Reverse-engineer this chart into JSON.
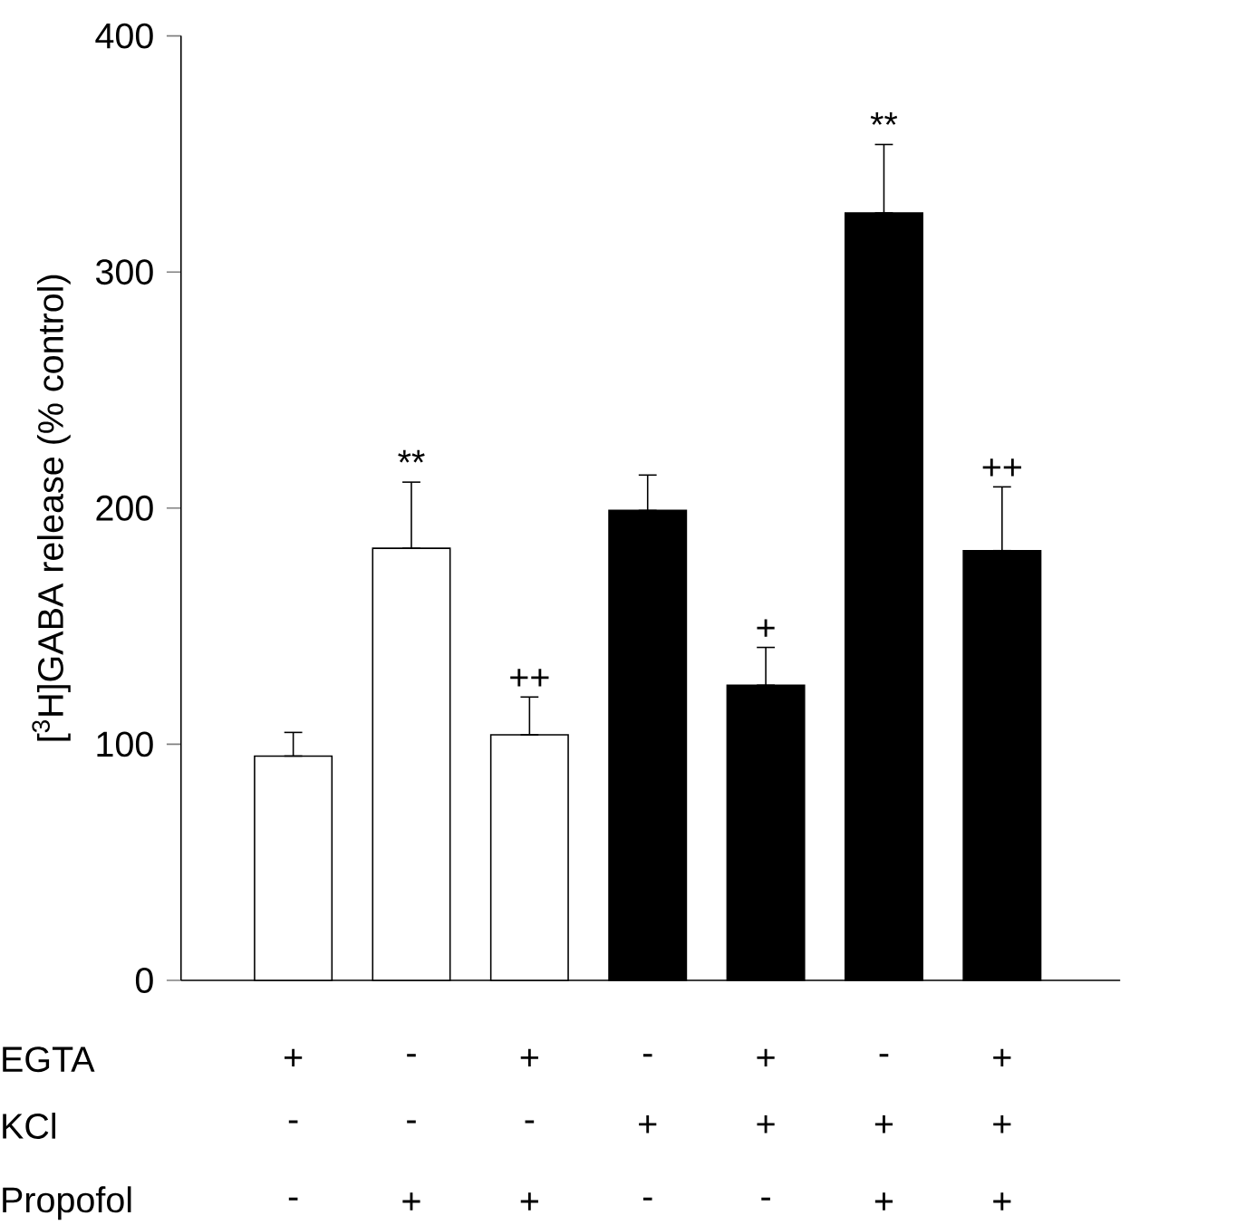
{
  "chart_data": {
    "type": "bar",
    "ylabel": "[$^{3}$H]GABA release (% control)",
    "categories": [
      null,
      null,
      null,
      null,
      null,
      null,
      null
    ],
    "values": [
      95,
      183,
      104,
      199,
      125,
      325,
      182
    ],
    "colors": [
      "#ffffff",
      "#ffffff",
      "#ffffff",
      "#000000",
      "#000000",
      "#000000",
      "#000000"
    ],
    "errors": [
      [
        95,
        105
      ],
      [
        183,
        211
      ],
      [
        104,
        120
      ],
      [
        199,
        214
      ],
      [
        125,
        141
      ],
      [
        325,
        354
      ],
      [
        182,
        209
      ]
    ],
    "value_labels": [
      null,
      "**",
      "++",
      null,
      "+",
      "**",
      "++"
    ],
    "ylim": [
      0,
      400
    ],
    "yticks": [
      0,
      100,
      200,
      300,
      400
    ],
    "annotations": [
      "EGTA",
      "KCl",
      "Propofol",
      "+",
      "-",
      "+",
      "-",
      "+",
      "-",
      "+",
      "-",
      "-",
      "-",
      "+",
      "+",
      "+",
      "+",
      "-",
      "+",
      "+",
      "-",
      "-",
      "+",
      "+"
    ]
  }
}
